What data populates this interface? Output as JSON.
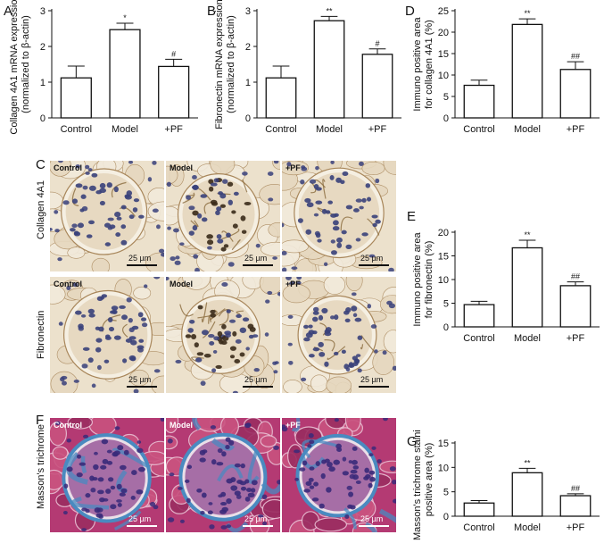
{
  "panels": {
    "A": "A",
    "B": "B",
    "C": "C",
    "D": "D",
    "E": "E",
    "F": "F",
    "G": "G"
  },
  "chart_data": [
    {
      "id": "A",
      "type": "bar",
      "categories": [
        "Control",
        "Model",
        "+PF"
      ],
      "values": [
        1.12,
        2.47,
        1.44
      ],
      "errors": [
        0.33,
        0.18,
        0.2
      ],
      "annotations": [
        "",
        "*",
        "#"
      ],
      "ylabel": "Collagen 4A1 mRNA expression",
      "ylabel2": "(normalized to β-actin)",
      "ylim": [
        0,
        3
      ],
      "yticks": [
        0,
        1,
        2,
        3
      ]
    },
    {
      "id": "B",
      "type": "bar",
      "categories": [
        "Control",
        "Model",
        "+PF"
      ],
      "values": [
        1.12,
        2.72,
        1.78
      ],
      "errors": [
        0.33,
        0.12,
        0.15
      ],
      "annotations": [
        "",
        "**",
        "#"
      ],
      "ylabel": "Fibronectin mRNA expression",
      "ylabel2": "(normalized to β-actin)",
      "ylim": [
        0,
        3
      ],
      "yticks": [
        0,
        1,
        2,
        3
      ]
    },
    {
      "id": "D",
      "type": "bar",
      "categories": [
        "Control",
        "Model",
        "+PF"
      ],
      "values": [
        7.6,
        21.8,
        11.3
      ],
      "errors": [
        1.2,
        1.3,
        1.8
      ],
      "annotations": [
        "",
        "**",
        "##"
      ],
      "ylabel": "Immuno positive area",
      "ylabel2": "for collagen 4A1 (%)",
      "ylim": [
        0,
        25
      ],
      "yticks": [
        0,
        5,
        10,
        15,
        20,
        25
      ]
    },
    {
      "id": "E",
      "type": "bar",
      "categories": [
        "Control",
        "Model",
        "+PF"
      ],
      "values": [
        4.7,
        16.7,
        8.7
      ],
      "errors": [
        0.7,
        1.6,
        0.8
      ],
      "annotations": [
        "",
        "**",
        "##"
      ],
      "ylabel": "Immuno positive area",
      "ylabel2": "for fibronectin (%)",
      "ylim": [
        0,
        20
      ],
      "yticks": [
        0,
        5,
        10,
        15,
        20
      ]
    },
    {
      "id": "G",
      "type": "bar",
      "categories": [
        "Control",
        "Model",
        "+PF"
      ],
      "values": [
        2.7,
        8.9,
        4.2
      ],
      "errors": [
        0.5,
        0.9,
        0.4
      ],
      "annotations": [
        "",
        "**",
        "##"
      ],
      "ylabel": "Masson's trichrome staining",
      "ylabel2": "positive area (%)",
      "ylim": [
        0,
        15
      ],
      "yticks": [
        0,
        5,
        10,
        15
      ]
    }
  ],
  "micrographs": {
    "row_labels": {
      "collagen": "Collagen 4A1",
      "fibronectin": "Fibronectin",
      "masson": "Masson's trichrome"
    },
    "groups": [
      "Control",
      "Model",
      "+PF"
    ],
    "scale": "25 µm",
    "colors": {
      "ihc_bg": "#ece1cc",
      "ihc_nuclei": "#38407a",
      "ihc_brown": "#a8865a",
      "masson_bg": "#b43a73",
      "masson_blue": "#4a8ac0",
      "masson_nuclei": "#3a2a7a"
    }
  }
}
